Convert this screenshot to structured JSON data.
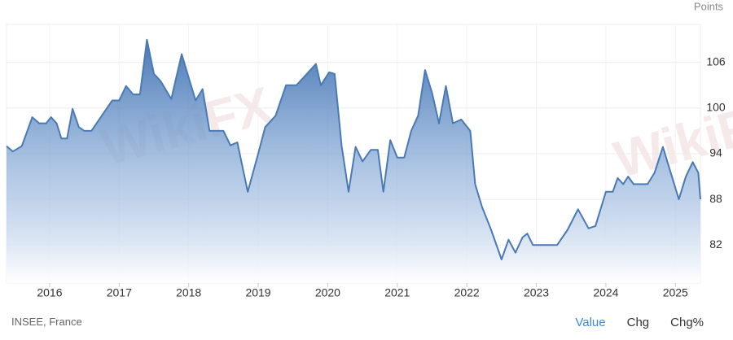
{
  "chart_data": {
    "type": "area",
    "y_label": "Points",
    "watermark": "WikiFX",
    "x": [
      2015.38,
      2015.47,
      2015.6,
      2015.75,
      2015.85,
      2015.95,
      2016.02,
      2016.1,
      2016.17,
      2016.25,
      2016.33,
      2016.42,
      2016.5,
      2016.6,
      2016.75,
      2016.9,
      2017.0,
      2017.1,
      2017.2,
      2017.3,
      2017.4,
      2017.5,
      2017.6,
      2017.75,
      2017.9,
      2018.0,
      2018.1,
      2018.2,
      2018.3,
      2018.5,
      2018.6,
      2018.7,
      2018.85,
      2019.0,
      2019.1,
      2019.25,
      2019.4,
      2019.55,
      2019.7,
      2019.83,
      2019.9,
      2020.02,
      2020.1,
      2020.2,
      2020.3,
      2020.4,
      2020.5,
      2020.62,
      2020.72,
      2020.8,
      2020.9,
      2021.0,
      2021.1,
      2021.2,
      2021.3,
      2021.4,
      2021.5,
      2021.6,
      2021.7,
      2021.8,
      2021.92,
      2022.05,
      2022.12,
      2022.22,
      2022.35,
      2022.5,
      2022.6,
      2022.7,
      2022.8,
      2022.87,
      2022.95,
      2023.1,
      2023.3,
      2023.45,
      2023.6,
      2023.75,
      2023.85,
      2024.0,
      2024.1,
      2024.17,
      2024.25,
      2024.32,
      2024.4,
      2024.6,
      2024.7,
      2024.82,
      2024.95,
      2025.05,
      2025.15,
      2025.25,
      2025.33,
      2025.36
    ],
    "series": [
      {
        "name": "Value",
        "color": "#4a7ab5",
        "values": [
          95,
          94.3,
          95,
          98.8,
          98,
          98,
          98.8,
          98,
          96,
          96,
          99.9,
          97.5,
          97,
          97,
          99,
          101,
          101,
          102.9,
          101.8,
          101.8,
          109,
          104.5,
          103.5,
          101.2,
          107.1,
          104,
          101,
          102.5,
          97,
          97,
          95.1,
          95.5,
          89,
          94,
          97.5,
          99,
          103,
          103,
          104.5,
          105.8,
          103,
          104.7,
          104.5,
          95,
          89,
          94.9,
          93,
          94.5,
          94.5,
          89,
          95.8,
          93.5,
          93.5,
          97,
          99,
          105,
          102,
          98,
          102.9,
          98,
          98.5,
          97,
          90,
          87,
          84,
          80.1,
          82.7,
          81,
          83,
          83.5,
          82,
          82,
          82,
          84,
          86.7,
          84.2,
          84.5,
          89,
          89,
          90.8,
          90,
          91,
          90,
          90,
          91.5,
          94.9,
          91,
          88,
          91,
          92.9,
          91.5,
          88
        ]
      }
    ],
    "xlim": [
      2015.38,
      2025.36
    ],
    "xticks": [
      2016,
      2017,
      2018,
      2019,
      2020,
      2021,
      2022,
      2023,
      2024,
      2025
    ],
    "ylim": [
      77,
      111
    ],
    "yticks": [
      82,
      88,
      94,
      100,
      106
    ],
    "grid": true,
    "source": "INSEE, France",
    "tabs": [
      "Value",
      "Chg",
      "Chg%"
    ]
  }
}
